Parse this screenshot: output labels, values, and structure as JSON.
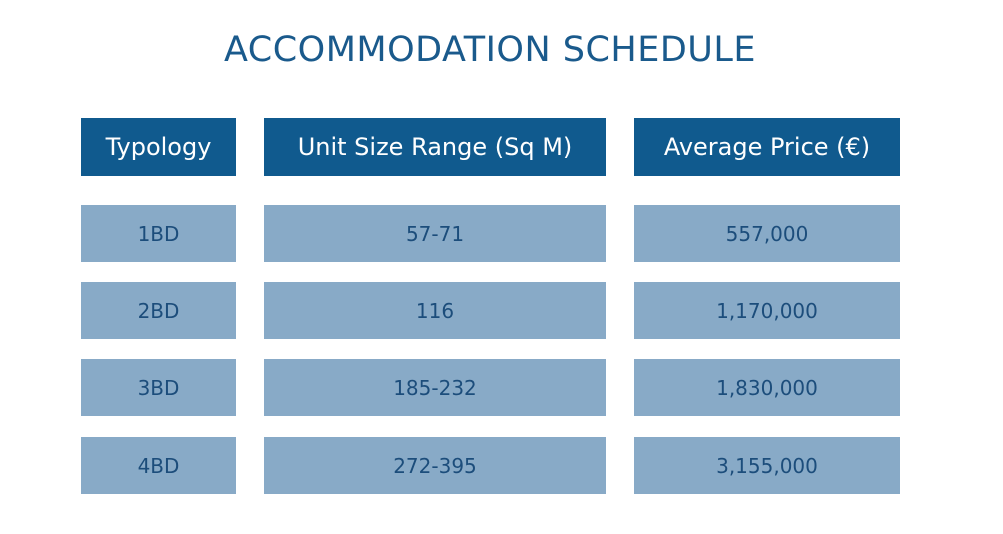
{
  "title": "ACCOMMODATION SCHEDULE",
  "table": {
    "header": [
      "Typology",
      "Unit Size Range (Sq M)",
      "Average Price (€)"
    ],
    "rows": [
      [
        "1BD",
        "57-71",
        "557,000"
      ],
      [
        "2BD",
        "116",
        "1,170,000"
      ],
      [
        "3BD",
        "185-232",
        "1,830,000"
      ],
      [
        "4BD",
        "272-395",
        "3,155,000"
      ]
    ]
  }
}
